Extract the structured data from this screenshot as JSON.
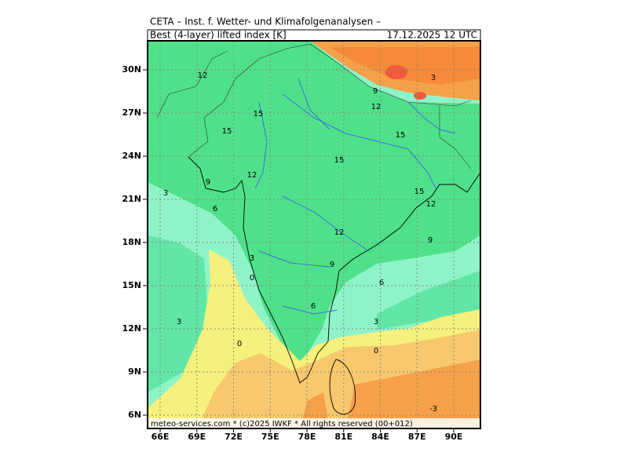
{
  "header": {
    "title": "CETA – Inst. f. Wetter- und Klimafolgenanalysen –",
    "parameter": "Best (4-layer) lifted index [K]",
    "valid_time": "17.12.2025 12 UTC"
  },
  "axes": {
    "latitude": [
      "30N",
      "27N",
      "24N",
      "21N",
      "18N",
      "15N",
      "12N",
      "9N",
      "6N"
    ],
    "longitude": [
      "66E",
      "69E",
      "72E",
      "75E",
      "78E",
      "81E",
      "84E",
      "87E",
      "90E"
    ]
  },
  "contour_labels": [
    "12",
    "15",
    "15",
    "15",
    "15",
    "12",
    "9",
    "3",
    "6",
    "15",
    "12",
    "12",
    "9",
    "3",
    "0",
    "9",
    "6",
    "6",
    "3",
    "3",
    "0",
    "0",
    "-3",
    "3",
    "9",
    "12"
  ],
  "footer": "meteo-services.com * (c)2025 IWKF * All rights reserved (00+012)"
}
